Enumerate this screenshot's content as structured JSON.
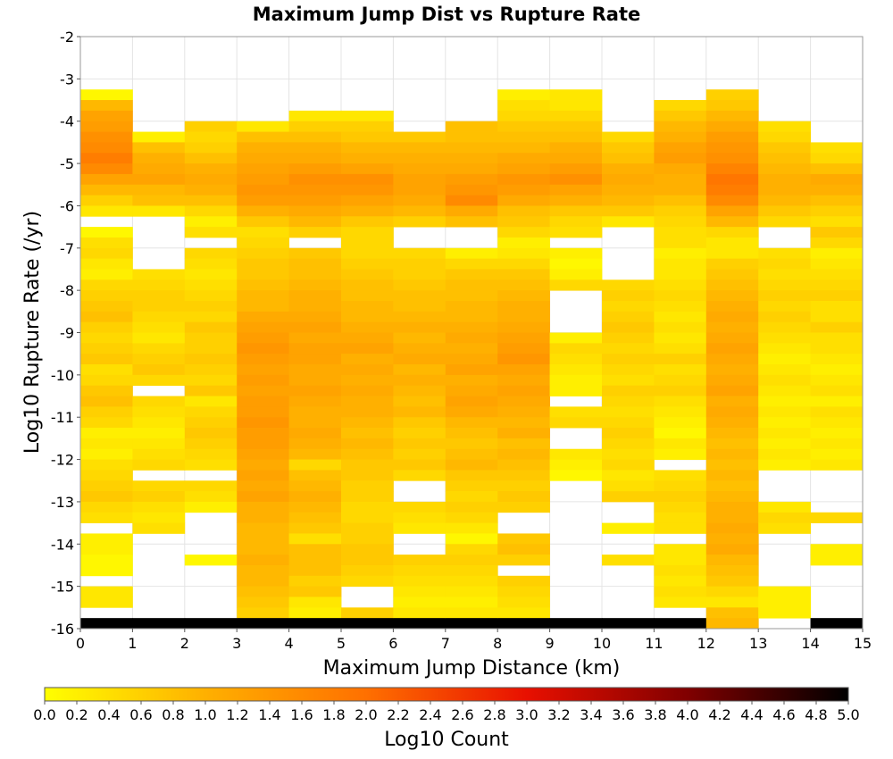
{
  "chart_data": {
    "type": "heatmap",
    "title": "Maximum Jump Dist vs Rupture Rate",
    "xlabel": "Maximum Jump Distance (km)",
    "ylabel": "Log10 Rupture Rate (/yr)",
    "xlim": [
      0,
      15
    ],
    "ylim": [
      -16,
      -2
    ],
    "x_ticks": [
      "0",
      "1",
      "2",
      "3",
      "4",
      "5",
      "6",
      "7",
      "8",
      "9",
      "10",
      "11",
      "12",
      "13",
      "14",
      "15"
    ],
    "y_ticks": [
      "-2",
      "-3",
      "-4",
      "-5",
      "-6",
      "-7",
      "-8",
      "-9",
      "-10",
      "-11",
      "-12",
      "-13",
      "-14",
      "-15",
      "-16"
    ],
    "x_bins": [
      0,
      1,
      2,
      3,
      4,
      5,
      6,
      7,
      8,
      9,
      10,
      11,
      12,
      13,
      14
    ],
    "y_bin_size": 0.25,
    "y_bin_rows_top_down": [
      -3.375,
      -3.625,
      -3.875,
      -4.125,
      -4.375,
      -4.625,
      -4.875,
      -5.125,
      -5.375,
      -5.625,
      -5.875,
      -6.125,
      -6.375,
      -6.625,
      -6.875,
      -7.125,
      -7.375,
      -7.625,
      -7.875,
      -8.125,
      -8.375,
      -8.625,
      -8.875,
      -9.125,
      -9.375,
      -9.625,
      -9.875,
      -10.125,
      -10.375,
      -10.625,
      -10.875,
      -11.125,
      -11.375,
      -11.625,
      -11.875,
      -12.125,
      -12.375,
      -12.625,
      -12.875,
      -13.125,
      -13.375,
      -13.625,
      -13.875,
      -14.125,
      -14.375,
      -14.625,
      -14.875,
      -15.125,
      -15.375,
      -15.625,
      -15.875
    ],
    "value_label": "Log10 Count",
    "columns_log10_count_top_down": [
      [
        0.1,
        0.9,
        1.2,
        1.3,
        1.5,
        1.6,
        1.8,
        1.6,
        1.2,
        0.9,
        0.6,
        0.3,
        null,
        0.1,
        0.4,
        0.5,
        0.3,
        0.2,
        0.5,
        0.6,
        0.7,
        0.8,
        0.6,
        0.5,
        0.6,
        0.7,
        0.4,
        0.5,
        0.7,
        0.8,
        0.6,
        0.5,
        0.2,
        0.3,
        0.2,
        0.4,
        0.5,
        0.6,
        0.7,
        0.5,
        0.4,
        null,
        0.2,
        0.2,
        0.1,
        0.1,
        null,
        0.3,
        0.3,
        null,
        5.0
      ],
      [
        null,
        null,
        null,
        null,
        0.2,
        0.8,
        1.0,
        1.1,
        1.2,
        0.9,
        0.8,
        0.3,
        null,
        null,
        null,
        null,
        null,
        0.4,
        0.5,
        0.6,
        0.6,
        0.5,
        0.4,
        0.3,
        0.5,
        0.6,
        0.7,
        0.5,
        null,
        0.5,
        0.4,
        0.3,
        0.2,
        0.3,
        0.4,
        0.5,
        null,
        0.5,
        0.6,
        0.4,
        0.3,
        0.4,
        null,
        null,
        null,
        null,
        null,
        null,
        null,
        null,
        5.0
      ],
      [
        null,
        null,
        null,
        0.6,
        0.5,
        0.6,
        0.8,
        1.0,
        1.1,
        1.0,
        0.8,
        0.5,
        0.2,
        0.4,
        null,
        0.5,
        0.4,
        0.3,
        0.4,
        0.5,
        0.6,
        0.5,
        0.7,
        0.6,
        0.6,
        0.7,
        0.6,
        0.5,
        0.7,
        0.3,
        0.5,
        0.6,
        0.7,
        0.6,
        0.5,
        0.4,
        null,
        0.5,
        0.4,
        0.2,
        null,
        null,
        null,
        null,
        0.1,
        null,
        null,
        null,
        null,
        null,
        5.0
      ],
      [
        null,
        null,
        null,
        0.3,
        0.8,
        1.0,
        1.1,
        1.2,
        1.3,
        1.4,
        1.3,
        1.0,
        0.7,
        0.4,
        0.5,
        0.6,
        0.7,
        0.7,
        0.8,
        0.9,
        0.9,
        1.1,
        1.2,
        1.3,
        1.4,
        1.3,
        1.2,
        1.3,
        1.2,
        1.3,
        1.3,
        1.4,
        1.3,
        1.3,
        1.2,
        1.1,
        1.2,
        1.1,
        1.2,
        1.0,
        1.0,
        0.9,
        0.9,
        0.9,
        1.0,
        0.9,
        0.9,
        0.8,
        0.7,
        0.6,
        5.0
      ],
      [
        null,
        null,
        0.3,
        0.6,
        0.8,
        1.0,
        1.1,
        1.3,
        1.5,
        1.4,
        1.3,
        1.1,
        0.9,
        0.6,
        null,
        0.7,
        0.8,
        0.8,
        0.9,
        1.0,
        1.0,
        1.1,
        1.2,
        1.1,
        1.2,
        1.2,
        1.1,
        1.1,
        1.2,
        1.1,
        1.0,
        1.0,
        1.1,
        1.0,
        0.9,
        0.5,
        0.8,
        0.9,
        1.0,
        0.9,
        0.8,
        0.7,
        0.4,
        0.8,
        0.8,
        0.8,
        0.6,
        0.7,
        0.3,
        0.2,
        5.0
      ],
      [
        null,
        null,
        0.3,
        0.6,
        0.7,
        0.9,
        1.0,
        1.2,
        1.5,
        1.4,
        1.2,
        1.0,
        0.7,
        0.5,
        0.5,
        0.5,
        0.6,
        0.7,
        0.8,
        0.8,
        0.9,
        0.9,
        1.0,
        1.1,
        1.2,
        1.0,
        1.1,
        1.0,
        1.1,
        1.0,
        1.0,
        0.9,
        0.8,
        0.9,
        0.8,
        0.7,
        0.7,
        0.6,
        0.6,
        0.5,
        0.5,
        0.6,
        0.6,
        0.7,
        0.7,
        0.6,
        0.5,
        null,
        null,
        0.6,
        5.0
      ],
      [
        null,
        null,
        null,
        null,
        0.7,
        0.9,
        1.0,
        1.1,
        1.2,
        1.2,
        1.1,
        0.9,
        0.6,
        null,
        null,
        0.5,
        0.6,
        0.6,
        0.7,
        0.8,
        0.8,
        0.9,
        1.0,
        0.9,
        1.0,
        1.1,
        0.9,
        1.0,
        0.9,
        0.8,
        0.9,
        0.7,
        0.6,
        0.7,
        0.6,
        0.7,
        0.5,
        null,
        null,
        0.5,
        0.4,
        0.3,
        null,
        null,
        0.6,
        0.5,
        0.4,
        0.3,
        0.2,
        0.3,
        5.0
      ],
      [
        null,
        null,
        null,
        0.8,
        0.8,
        0.9,
        1.0,
        1.1,
        1.3,
        1.4,
        1.6,
        1.1,
        0.8,
        null,
        null,
        0.2,
        0.5,
        0.7,
        0.8,
        0.8,
        0.9,
        0.9,
        1.0,
        1.1,
        1.0,
        1.1,
        1.2,
        1.0,
        1.1,
        1.2,
        1.1,
        0.9,
        0.8,
        0.7,
        0.8,
        0.9,
        0.7,
        0.6,
        0.5,
        0.6,
        0.5,
        0.3,
        0.1,
        0.5,
        0.6,
        0.5,
        0.4,
        0.3,
        0.2,
        0.3,
        5.0
      ],
      [
        0.2,
        0.4,
        0.5,
        0.7,
        0.8,
        0.9,
        1.1,
        1.2,
        1.4,
        1.3,
        1.1,
        0.8,
        0.7,
        0.5,
        0.2,
        0.3,
        0.5,
        0.7,
        0.8,
        0.9,
        1.0,
        1.0,
        1.1,
        1.2,
        1.3,
        1.4,
        1.2,
        1.1,
        1.2,
        1.1,
        1.0,
        0.9,
        1.0,
        0.8,
        0.9,
        0.8,
        0.7,
        0.6,
        0.7,
        0.6,
        null,
        null,
        0.7,
        0.8,
        0.6,
        null,
        0.6,
        0.5,
        0.4,
        0.3,
        5.0
      ],
      [
        0.3,
        0.3,
        0.5,
        0.7,
        0.8,
        1.0,
        1.1,
        1.3,
        1.5,
        1.2,
        1.0,
        0.7,
        0.5,
        0.4,
        null,
        0.2,
        0.1,
        0.2,
        0.5,
        null,
        null,
        null,
        null,
        0.2,
        0.5,
        0.4,
        0.3,
        0.2,
        0.2,
        null,
        0.4,
        0.5,
        null,
        null,
        0.3,
        0.2,
        0.1,
        null,
        null,
        null,
        null,
        null,
        null,
        null,
        null,
        null,
        null,
        null,
        null,
        null,
        5.0
      ],
      [
        null,
        null,
        null,
        null,
        0.5,
        0.7,
        0.8,
        1.0,
        1.1,
        1.0,
        0.9,
        0.7,
        0.3,
        null,
        null,
        null,
        null,
        null,
        0.5,
        0.6,
        0.5,
        0.6,
        0.7,
        0.6,
        0.5,
        0.6,
        0.5,
        0.4,
        0.6,
        0.5,
        0.4,
        0.5,
        0.6,
        0.5,
        0.4,
        0.5,
        0.3,
        0.4,
        0.6,
        null,
        null,
        0.2,
        null,
        null,
        0.4,
        null,
        null,
        null,
        null,
        null,
        5.0
      ],
      [
        null,
        0.5,
        0.7,
        0.9,
        1.0,
        1.2,
        1.3,
        1.1,
        1.0,
        1.0,
        0.8,
        0.6,
        0.5,
        0.4,
        0.4,
        0.2,
        0.3,
        0.3,
        0.4,
        0.5,
        0.4,
        0.3,
        0.4,
        0.3,
        0.4,
        0.6,
        0.4,
        0.5,
        0.6,
        0.4,
        0.3,
        0.2,
        0.1,
        0.3,
        0.2,
        null,
        0.4,
        0.5,
        0.6,
        0.5,
        0.4,
        0.4,
        null,
        0.3,
        0.3,
        0.4,
        0.3,
        0.4,
        0.3,
        null,
        5.0
      ],
      [
        0.6,
        0.7,
        0.9,
        1.1,
        1.3,
        1.4,
        1.5,
        1.7,
        1.9,
        1.8,
        1.6,
        1.2,
        0.9,
        0.5,
        0.3,
        0.3,
        0.6,
        0.7,
        0.8,
        0.9,
        1.0,
        1.1,
        1.0,
        1.1,
        1.2,
        1.1,
        1.0,
        1.1,
        1.2,
        1.0,
        1.1,
        1.0,
        0.9,
        0.8,
        0.9,
        0.8,
        0.9,
        0.8,
        0.9,
        1.0,
        1.0,
        1.1,
        1.0,
        1.1,
        0.9,
        0.8,
        0.7,
        0.5,
        0.3,
        0.8,
        0.9
      ],
      [
        null,
        null,
        null,
        0.4,
        0.5,
        0.7,
        0.8,
        0.9,
        1.0,
        1.0,
        0.9,
        0.7,
        0.5,
        null,
        null,
        0.4,
        0.5,
        0.4,
        0.5,
        0.6,
        0.5,
        0.6,
        0.5,
        0.4,
        0.3,
        0.2,
        0.3,
        0.4,
        0.3,
        0.2,
        0.3,
        0.2,
        0.3,
        0.2,
        0.3,
        0.2,
        null,
        null,
        null,
        0.3,
        0.5,
        0.4,
        null,
        null,
        null,
        null,
        null,
        0.2,
        0.2,
        0.2,
        null
      ],
      [
        null,
        null,
        null,
        null,
        null,
        0.4,
        0.5,
        0.8,
        1.1,
        1.0,
        0.8,
        0.6,
        0.4,
        0.7,
        0.5,
        0.2,
        0.3,
        0.4,
        0.5,
        0.6,
        0.4,
        0.4,
        0.6,
        0.4,
        0.4,
        0.3,
        0.2,
        0.3,
        0.4,
        0.2,
        0.4,
        0.3,
        0.2,
        0.3,
        0.2,
        0.3,
        null,
        null,
        null,
        null,
        0.5,
        null,
        null,
        0.2,
        0.2,
        null,
        null,
        null,
        null,
        null,
        5.0
      ]
    ],
    "colorbar": {
      "min": 0.0,
      "max": 5.0,
      "ticks": [
        "0.0",
        "0.2",
        "0.4",
        "0.6",
        "0.8",
        "1.0",
        "1.2",
        "1.4",
        "1.6",
        "1.8",
        "2.0",
        "2.2",
        "2.4",
        "2.6",
        "2.8",
        "3.0",
        "3.2",
        "3.4",
        "3.6",
        "3.8",
        "4.0",
        "4.2",
        "4.4",
        "4.6",
        "4.8",
        "5.0"
      ],
      "label": "Log10 Count",
      "colors": [
        "#ffff00",
        "#ffb000",
        "#ff7000",
        "#e81000",
        "#800000",
        "#000000"
      ]
    },
    "grid": true,
    "legend": "bottom"
  }
}
